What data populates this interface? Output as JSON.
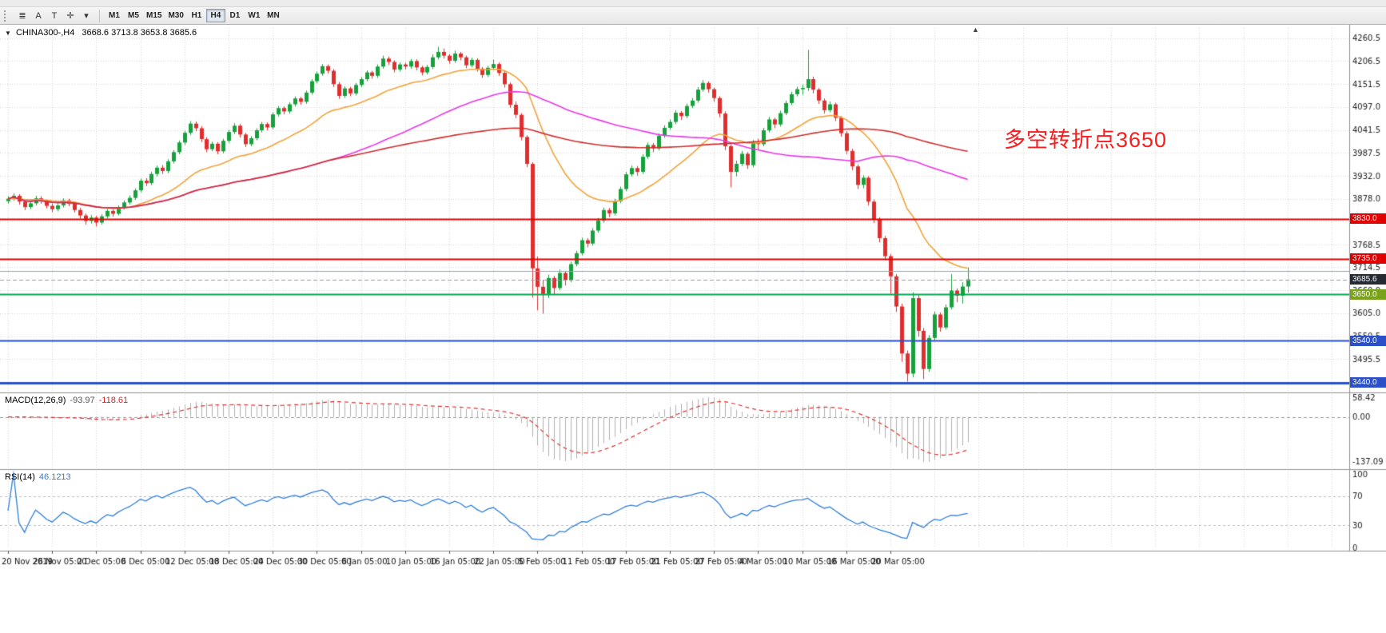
{
  "toolbar": {
    "tools": [
      {
        "name": "chart-list",
        "glyph": "≣"
      },
      {
        "name": "letter-a",
        "glyph": "A"
      },
      {
        "name": "text-tool",
        "glyph": "T"
      },
      {
        "name": "crosshair",
        "glyph": "✛"
      },
      {
        "name": "tool-dropdown",
        "glyph": "▾"
      }
    ],
    "timeframes": [
      {
        "label": "M1"
      },
      {
        "label": "M5"
      },
      {
        "label": "M15"
      },
      {
        "label": "M30"
      },
      {
        "label": "H1"
      },
      {
        "label": "H4",
        "active": true
      },
      {
        "label": "D1"
      },
      {
        "label": "W1"
      },
      {
        "label": "MN"
      }
    ]
  },
  "chart": {
    "symbol_header": {
      "symbol": "CHINA300-,H4",
      "ohlc": "3668.6 3713.8 3653.8 3685.6"
    },
    "icons": {
      "collapse": "▼",
      "shift_marker": "▲"
    },
    "annotation": {
      "text": "多空转折点3650",
      "color": "#fb1d1d"
    },
    "price_axis": {
      "labels": [
        "4260.5",
        "4206.5",
        "4151.5",
        "4097.0",
        "4041.5",
        "3987.5",
        "3932.0",
        "3878.0",
        "3824.0",
        "3768.5",
        "3714.5",
        "3660.0",
        "3605.0",
        "3550.5",
        "3495.5"
      ]
    },
    "price_lines": [
      {
        "price": 3830.0,
        "label": "3830.0",
        "color": "#e00000",
        "width": 2,
        "style": "solid"
      },
      {
        "price": 3735.0,
        "label": "3735.0",
        "color": "#e00000",
        "width": 2,
        "style": "solid"
      },
      {
        "price": 3705.0,
        "label": "",
        "color": "#8ea7c2",
        "width": 1,
        "style": "solid"
      },
      {
        "price": 3685.6,
        "label": "3685.6",
        "color": "#9a9a9a",
        "width": 1,
        "style": "dash",
        "badge": "#262b33",
        "current": true
      },
      {
        "price": 3650.0,
        "label": "3650.0",
        "color": "#00a651",
        "width": 2,
        "style": "solid",
        "badge": "#7aa21a"
      },
      {
        "price": 3540.0,
        "label": "3540.0",
        "color": "#2b50c8",
        "width": 2,
        "style": "solid"
      },
      {
        "price": 3440.0,
        "label": "3440.0",
        "color": "#2b50c8",
        "width": 3,
        "style": "solid"
      }
    ],
    "time_axis": {
      "labels": [
        "20 Nov 2019",
        "26 Nov 05:00",
        "2 Dec 05:00",
        "6 Dec 05:00",
        "12 Dec 05:00",
        "18 Dec 05:00",
        "24 Dec 05:00",
        "30 Dec 05:00",
        "6 Jan 05:00",
        "10 Jan 05:00",
        "16 Jan 05:00",
        "22 Jan 05:00",
        "5 Feb 05:00",
        "11 Feb 05:00",
        "17 Feb 05:00",
        "21 Feb 05:00",
        "27 Feb 05:00",
        "4 Mar 05:00",
        "10 Mar 05:00",
        "16 Mar 05:00",
        "20 Mar 05:00"
      ]
    },
    "panes": {
      "macd": {
        "title": "MACD(12,26,9)",
        "main_value": "-93.97",
        "signal_value": "-118.61",
        "axis": [
          "58.42",
          "0.00",
          "-137.09"
        ]
      },
      "rsi": {
        "title": "RSI(14)",
        "value": "46.1213",
        "axis": [
          "100",
          "70",
          "30",
          "0"
        ]
      }
    }
  },
  "chart_data": {
    "type": "candlestick",
    "symbol": "CHINA300-",
    "timeframe": "H4",
    "title": "CHINA300-,H4",
    "current_ohlc": {
      "open": 3668.6,
      "high": 3713.8,
      "low": 3653.8,
      "close": 3685.6
    },
    "price_range": [
      3420,
      4285
    ],
    "up_color": "#17a13c",
    "down_color": "#e02e2e",
    "label_every": 8,
    "x_labels": [
      "20 Nov 2019",
      "26 Nov 05:00",
      "2 Dec 05:00",
      "6 Dec 05:00",
      "12 Dec 05:00",
      "18 Dec 05:00",
      "24 Dec 05:00",
      "30 Dec 05:00",
      "6 Jan 05:00",
      "10 Jan 05:00",
      "16 Jan 05:00",
      "22 Jan 05:00",
      "5 Feb 05:00",
      "11 Feb 05:00",
      "17 Feb 05:00",
      "21 Feb 05:00",
      "27 Feb 05:00",
      "4 Mar 05:00",
      "10 Mar 05:00",
      "16 Mar 05:00",
      "20 Mar 05:00"
    ],
    "moving_averages": [
      {
        "period": 24,
        "type": "ema",
        "color": "#f2a33c"
      },
      {
        "period": 60,
        "type": "sma",
        "color": "#e838e8"
      },
      {
        "period": 130,
        "type": "sma",
        "color": "#cf2e2e"
      }
    ],
    "indicators": {
      "macd": {
        "fast": 12,
        "slow": 26,
        "signal": 9,
        "range": [
          -155,
          65
        ],
        "hist_color": "#b0b0b0",
        "signal_color": "#e03030"
      },
      "rsi": {
        "period": 14,
        "range": [
          0,
          100
        ],
        "levels": [
          70,
          30
        ],
        "color": "#2f7ed8"
      }
    },
    "candles": [
      [
        3872,
        3884,
        3866,
        3878
      ],
      [
        3878,
        3891,
        3873,
        3885
      ],
      [
        3885,
        3889,
        3864,
        3871
      ],
      [
        3871,
        3875,
        3851,
        3858
      ],
      [
        3858,
        3872,
        3853,
        3867
      ],
      [
        3867,
        3885,
        3862,
        3879
      ],
      [
        3879,
        3884,
        3866,
        3872
      ],
      [
        3872,
        3876,
        3855,
        3861
      ],
      [
        3861,
        3866,
        3846,
        3853
      ],
      [
        3853,
        3868,
        3848,
        3862
      ],
      [
        3862,
        3879,
        3857,
        3874
      ],
      [
        3874,
        3878,
        3860,
        3866
      ],
      [
        3866,
        3870,
        3845,
        3851
      ],
      [
        3851,
        3856,
        3831,
        3838
      ],
      [
        3838,
        3843,
        3816,
        3825
      ],
      [
        3825,
        3839,
        3819,
        3833
      ],
      [
        3833,
        3837,
        3812,
        3821
      ],
      [
        3821,
        3841,
        3816,
        3836
      ],
      [
        3836,
        3854,
        3831,
        3849
      ],
      [
        3849,
        3853,
        3835,
        3842
      ],
      [
        3842,
        3862,
        3838,
        3857
      ],
      [
        3857,
        3874,
        3852,
        3869
      ],
      [
        3869,
        3886,
        3864,
        3880
      ],
      [
        3880,
        3903,
        3875,
        3898
      ],
      [
        3898,
        3926,
        3893,
        3921
      ],
      [
        3921,
        3927,
        3908,
        3915
      ],
      [
        3915,
        3942,
        3910,
        3937
      ],
      [
        3937,
        3957,
        3931,
        3952
      ],
      [
        3952,
        3958,
        3937,
        3944
      ],
      [
        3944,
        3972,
        3939,
        3967
      ],
      [
        3967,
        3994,
        3962,
        3989
      ],
      [
        3989,
        4017,
        3984,
        4012
      ],
      [
        4012,
        4040,
        4006,
        4035
      ],
      [
        4035,
        4063,
        4030,
        4057
      ],
      [
        4057,
        4062,
        4039,
        4046
      ],
      [
        4046,
        4051,
        4013,
        4020
      ],
      [
        4020,
        4025,
        3989,
        3996
      ],
      [
        3996,
        4014,
        3991,
        4009
      ],
      [
        4009,
        4013,
        3984,
        3991
      ],
      [
        3991,
        4021,
        3986,
        4016
      ],
      [
        4016,
        4042,
        4011,
        4037
      ],
      [
        4037,
        4058,
        4032,
        4052
      ],
      [
        4052,
        4056,
        4024,
        4031
      ],
      [
        4031,
        4035,
        4001,
        4008
      ],
      [
        4008,
        4027,
        4003,
        4022
      ],
      [
        4022,
        4046,
        4017,
        4041
      ],
      [
        4041,
        4061,
        4036,
        4056
      ],
      [
        4056,
        4060,
        4041,
        4048
      ],
      [
        4048,
        4084,
        4043,
        4079
      ],
      [
        4079,
        4099,
        4074,
        4094
      ],
      [
        4094,
        4098,
        4079,
        4086
      ],
      [
        4086,
        4108,
        4081,
        4103
      ],
      [
        4103,
        4122,
        4098,
        4117
      ],
      [
        4117,
        4121,
        4102,
        4109
      ],
      [
        4109,
        4136,
        4104,
        4131
      ],
      [
        4131,
        4163,
        4126,
        4158
      ],
      [
        4158,
        4181,
        4153,
        4176
      ],
      [
        4176,
        4199,
        4171,
        4194
      ],
      [
        4194,
        4198,
        4176,
        4183
      ],
      [
        4183,
        4187,
        4144,
        4151
      ],
      [
        4151,
        4156,
        4116,
        4123
      ],
      [
        4123,
        4146,
        4118,
        4141
      ],
      [
        4141,
        4145,
        4122,
        4129
      ],
      [
        4129,
        4154,
        4124,
        4149
      ],
      [
        4149,
        4168,
        4144,
        4163
      ],
      [
        4163,
        4184,
        4158,
        4179
      ],
      [
        4179,
        4183,
        4164,
        4171
      ],
      [
        4171,
        4198,
        4166,
        4193
      ],
      [
        4193,
        4219,
        4188,
        4212
      ],
      [
        4212,
        4217,
        4197,
        4204
      ],
      [
        4204,
        4208,
        4179,
        4186
      ],
      [
        4186,
        4203,
        4181,
        4198
      ],
      [
        4198,
        4202,
        4186,
        4193
      ],
      [
        4193,
        4211,
        4188,
        4206
      ],
      [
        4206,
        4210,
        4184,
        4191
      ],
      [
        4191,
        4195,
        4172,
        4179
      ],
      [
        4179,
        4197,
        4174,
        4192
      ],
      [
        4192,
        4222,
        4187,
        4215
      ],
      [
        4215,
        4240,
        4210,
        4228
      ],
      [
        4228,
        4236,
        4212,
        4219
      ],
      [
        4219,
        4223,
        4200,
        4207
      ],
      [
        4207,
        4231,
        4202,
        4224
      ],
      [
        4224,
        4228,
        4208,
        4215
      ],
      [
        4215,
        4219,
        4189,
        4196
      ],
      [
        4196,
        4214,
        4191,
        4209
      ],
      [
        4209,
        4213,
        4181,
        4188
      ],
      [
        4188,
        4192,
        4166,
        4173
      ],
      [
        4173,
        4195,
        4168,
        4190
      ],
      [
        4190,
        4210,
        4185,
        4199
      ],
      [
        4199,
        4203,
        4171,
        4178
      ],
      [
        4178,
        4182,
        4143,
        4151
      ],
      [
        4151,
        4155,
        4095,
        4102
      ],
      [
        4102,
        4110,
        4070,
        4078
      ],
      [
        4078,
        4082,
        4017,
        4025
      ],
      [
        4025,
        4029,
        3953,
        3961
      ],
      [
        3961,
        3965,
        3642,
        3712
      ],
      [
        3712,
        3740,
        3612,
        3668
      ],
      [
        3668,
        3684,
        3604,
        3651
      ],
      [
        3651,
        3697,
        3641,
        3689
      ],
      [
        3689,
        3694,
        3649,
        3665
      ],
      [
        3665,
        3709,
        3660,
        3701
      ],
      [
        3701,
        3706,
        3671,
        3684
      ],
      [
        3684,
        3728,
        3679,
        3722
      ],
      [
        3722,
        3754,
        3717,
        3748
      ],
      [
        3748,
        3785,
        3743,
        3779
      ],
      [
        3779,
        3784,
        3762,
        3771
      ],
      [
        3771,
        3808,
        3766,
        3802
      ],
      [
        3802,
        3832,
        3797,
        3826
      ],
      [
        3826,
        3857,
        3821,
        3851
      ],
      [
        3851,
        3856,
        3834,
        3843
      ],
      [
        3843,
        3878,
        3838,
        3872
      ],
      [
        3872,
        3907,
        3867,
        3901
      ],
      [
        3901,
        3942,
        3896,
        3936
      ],
      [
        3936,
        3957,
        3931,
        3951
      ],
      [
        3951,
        3956,
        3933,
        3942
      ],
      [
        3942,
        3984,
        3937,
        3978
      ],
      [
        3978,
        4012,
        3973,
        4006
      ],
      [
        4006,
        4011,
        3989,
        3998
      ],
      [
        3998,
        4034,
        3993,
        4028
      ],
      [
        4028,
        4053,
        4023,
        4047
      ],
      [
        4047,
        4067,
        4042,
        4061
      ],
      [
        4061,
        4089,
        4056,
        4083
      ],
      [
        4083,
        4087,
        4066,
        4075
      ],
      [
        4075,
        4105,
        4070,
        4099
      ],
      [
        4099,
        4118,
        4094,
        4112
      ],
      [
        4112,
        4144,
        4107,
        4138
      ],
      [
        4138,
        4161,
        4133,
        4154
      ],
      [
        4154,
        4158,
        4131,
        4139
      ],
      [
        4139,
        4143,
        4109,
        4118
      ],
      [
        4118,
        4122,
        4072,
        4081
      ],
      [
        4081,
        4086,
        3994,
        4003
      ],
      [
        4003,
        4008,
        3905,
        3942
      ],
      [
        3942,
        3969,
        3931,
        3961
      ],
      [
        3961,
        3992,
        3956,
        3985
      ],
      [
        3985,
        3989,
        3949,
        3958
      ],
      [
        3958,
        4018,
        3953,
        4012
      ],
      [
        4012,
        4021,
        3996,
        4008
      ],
      [
        4008,
        4047,
        4003,
        4041
      ],
      [
        4041,
        4073,
        4036,
        4067
      ],
      [
        4067,
        4071,
        4046,
        4055
      ],
      [
        4055,
        4088,
        4050,
        4082
      ],
      [
        4082,
        4112,
        4077,
        4106
      ],
      [
        4106,
        4133,
        4101,
        4127
      ],
      [
        4127,
        4145,
        4122,
        4139
      ],
      [
        4139,
        4150,
        4126,
        4142
      ],
      [
        4142,
        4233,
        4135,
        4163
      ],
      [
        4163,
        4169,
        4129,
        4138
      ],
      [
        4138,
        4142,
        4104,
        4112
      ],
      [
        4112,
        4117,
        4081,
        4089
      ],
      [
        4089,
        4110,
        4084,
        4103
      ],
      [
        4103,
        4107,
        4063,
        4071
      ],
      [
        4071,
        4075,
        4026,
        4034
      ],
      [
        4034,
        4039,
        3984,
        3992
      ],
      [
        3992,
        3997,
        3946,
        3955
      ],
      [
        3955,
        3960,
        3901,
        3911
      ],
      [
        3911,
        3934,
        3903,
        3928
      ],
      [
        3928,
        3932,
        3862,
        3871
      ],
      [
        3871,
        3876,
        3820,
        3829
      ],
      [
        3829,
        3834,
        3774,
        3784
      ],
      [
        3784,
        3789,
        3731,
        3741
      ],
      [
        3741,
        3746,
        3652,
        3693
      ],
      [
        3693,
        3698,
        3608,
        3621
      ],
      [
        3621,
        3628,
        3489,
        3509
      ],
      [
        3509,
        3516,
        3442,
        3461
      ],
      [
        3461,
        3655,
        3452,
        3641
      ],
      [
        3641,
        3648,
        3549,
        3563
      ],
      [
        3563,
        3570,
        3448,
        3472
      ],
      [
        3472,
        3553,
        3465,
        3546
      ],
      [
        3546,
        3609,
        3541,
        3602
      ],
      [
        3602,
        3607,
        3561,
        3571
      ],
      [
        3571,
        3626,
        3566,
        3619
      ],
      [
        3619,
        3698,
        3614,
        3659
      ],
      [
        3659,
        3664,
        3631,
        3647
      ],
      [
        3647,
        3679,
        3628,
        3668.6
      ],
      [
        3668.6,
        3713.8,
        3653.8,
        3685.6
      ]
    ]
  }
}
